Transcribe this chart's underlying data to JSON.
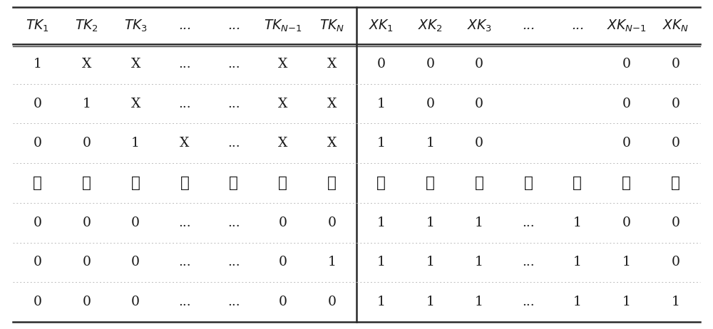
{
  "left_headers": [
    "TK",
    "TK",
    "TK",
    "...",
    "...",
    "TK",
    "TK"
  ],
  "left_header_subs": [
    "1",
    "2",
    "3",
    "",
    "",
    "N-1",
    "N"
  ],
  "right_headers": [
    "XK",
    "XK",
    "XK",
    "...",
    "...",
    "XK",
    "XK"
  ],
  "right_header_subs": [
    "1",
    "2",
    "3",
    "",
    "",
    "N-1",
    "N"
  ],
  "left_data": [
    [
      "1",
      "X",
      "X",
      "...",
      "...",
      "X",
      "X"
    ],
    [
      "0",
      "1",
      "X",
      "...",
      "...",
      "X",
      "X"
    ],
    [
      "0",
      "0",
      "1",
      "X",
      "...",
      "X",
      "X"
    ],
    [
      "⋮",
      "⋮",
      "⋮",
      "⋮",
      "⋮",
      "⋮",
      "⋮"
    ],
    [
      "0",
      "0",
      "0",
      "...",
      "...",
      "0",
      "0"
    ],
    [
      "0",
      "0",
      "0",
      "...",
      "...",
      "0",
      "1"
    ],
    [
      "0",
      "0",
      "0",
      "...",
      "...",
      "0",
      "0"
    ]
  ],
  "right_data": [
    [
      "0",
      "0",
      "0",
      "",
      "",
      "0",
      "0"
    ],
    [
      "1",
      "0",
      "0",
      "",
      "",
      "0",
      "0"
    ],
    [
      "1",
      "1",
      "0",
      "",
      "",
      "0",
      "0"
    ],
    [
      "⋮",
      "⋮",
      "⋮",
      "⋮",
      "⋮",
      "⋮",
      "⋮"
    ],
    [
      "1",
      "1",
      "1",
      "...",
      "1",
      "0",
      "0"
    ],
    [
      "1",
      "1",
      "1",
      "...",
      "1",
      "1",
      "0"
    ],
    [
      "1",
      "1",
      "1",
      "...",
      "1",
      "1",
      "1"
    ]
  ],
  "bg_color": "#ffffff",
  "text_color": "#1a1a1a",
  "border_color": "#2a2a2a",
  "fontsize": 13.5,
  "header_fontsize": 13.5
}
